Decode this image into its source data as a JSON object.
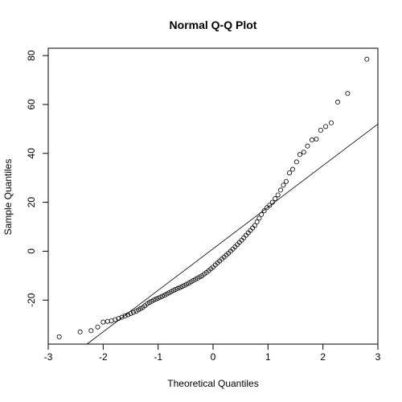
{
  "chart_data": {
    "type": "scatter",
    "title": "Normal Q-Q Plot",
    "xlabel": "Theoretical Quantiles",
    "ylabel": "Sample Quantiles",
    "xlim": [
      -3.0,
      3.0
    ],
    "ylim": [
      -38,
      83
    ],
    "x_ticks": [
      -3,
      -2,
      -1,
      0,
      1,
      2,
      3
    ],
    "y_ticks": [
      -20,
      0,
      20,
      40,
      60,
      80
    ],
    "grid": false,
    "legend": "none",
    "reference_line": {
      "intercept": 1.0,
      "slope": 17.0
    },
    "points": [
      {
        "x": -2.8,
        "y": -35.0
      },
      {
        "x": -2.42,
        "y": -33.0
      },
      {
        "x": -2.22,
        "y": -32.5
      },
      {
        "x": -2.1,
        "y": -31.0
      },
      {
        "x": -2.0,
        "y": -29.0
      },
      {
        "x": -1.92,
        "y": -28.7
      },
      {
        "x": -1.85,
        "y": -28.5
      },
      {
        "x": -1.78,
        "y": -28.0
      },
      {
        "x": -1.72,
        "y": -27.5
      },
      {
        "x": -1.66,
        "y": -27.0
      },
      {
        "x": -1.6,
        "y": -26.5
      },
      {
        "x": -1.55,
        "y": -26.0
      },
      {
        "x": -1.5,
        "y": -25.5
      },
      {
        "x": -1.45,
        "y": -25.0
      },
      {
        "x": -1.4,
        "y": -24.5
      },
      {
        "x": -1.36,
        "y": -24.0
      },
      {
        "x": -1.32,
        "y": -23.5
      },
      {
        "x": -1.28,
        "y": -23.0
      },
      {
        "x": -1.24,
        "y": -22.3
      },
      {
        "x": -1.2,
        "y": -21.5
      },
      {
        "x": -1.16,
        "y": -21.0
      },
      {
        "x": -1.12,
        "y": -20.5
      },
      {
        "x": -1.08,
        "y": -20.0
      },
      {
        "x": -1.04,
        "y": -19.6
      },
      {
        "x": -1.0,
        "y": -19.2
      },
      {
        "x": -0.96,
        "y": -18.8
      },
      {
        "x": -0.92,
        "y": -18.4
      },
      {
        "x": -0.88,
        "y": -18.0
      },
      {
        "x": -0.84,
        "y": -17.5
      },
      {
        "x": -0.8,
        "y": -17.0
      },
      {
        "x": -0.76,
        "y": -16.5
      },
      {
        "x": -0.72,
        "y": -16.0
      },
      {
        "x": -0.68,
        "y": -15.6
      },
      {
        "x": -0.64,
        "y": -15.2
      },
      {
        "x": -0.6,
        "y": -14.8
      },
      {
        "x": -0.56,
        "y": -14.4
      },
      {
        "x": -0.52,
        "y": -14.0
      },
      {
        "x": -0.48,
        "y": -13.5
      },
      {
        "x": -0.44,
        "y": -13.0
      },
      {
        "x": -0.4,
        "y": -12.5
      },
      {
        "x": -0.36,
        "y": -12.0
      },
      {
        "x": -0.32,
        "y": -11.5
      },
      {
        "x": -0.28,
        "y": -11.0
      },
      {
        "x": -0.24,
        "y": -10.5
      },
      {
        "x": -0.2,
        "y": -10.0
      },
      {
        "x": -0.16,
        "y": -9.3
      },
      {
        "x": -0.12,
        "y": -8.7
      },
      {
        "x": -0.08,
        "y": -8.0
      },
      {
        "x": -0.04,
        "y": -7.2
      },
      {
        "x": 0.0,
        "y": -6.5
      },
      {
        "x": 0.04,
        "y": -5.6
      },
      {
        "x": 0.08,
        "y": -4.8
      },
      {
        "x": 0.12,
        "y": -4.0
      },
      {
        "x": 0.16,
        "y": -3.2
      },
      {
        "x": 0.2,
        "y": -2.4
      },
      {
        "x": 0.24,
        "y": -1.6
      },
      {
        "x": 0.28,
        "y": -0.8
      },
      {
        "x": 0.32,
        "y": 0.0
      },
      {
        "x": 0.36,
        "y": 0.9
      },
      {
        "x": 0.4,
        "y": 1.8
      },
      {
        "x": 0.44,
        "y": 2.7
      },
      {
        "x": 0.48,
        "y": 3.6
      },
      {
        "x": 0.52,
        "y": 4.5
      },
      {
        "x": 0.56,
        "y": 5.5
      },
      {
        "x": 0.6,
        "y": 6.5
      },
      {
        "x": 0.64,
        "y": 7.5
      },
      {
        "x": 0.68,
        "y": 8.5
      },
      {
        "x": 0.72,
        "y": 9.5
      },
      {
        "x": 0.76,
        "y": 10.5
      },
      {
        "x": 0.8,
        "y": 12.0
      },
      {
        "x": 0.84,
        "y": 13.5
      },
      {
        "x": 0.88,
        "y": 15.0
      },
      {
        "x": 0.93,
        "y": 16.5
      },
      {
        "x": 0.98,
        "y": 17.8
      },
      {
        "x": 1.03,
        "y": 18.8
      },
      {
        "x": 1.08,
        "y": 20.0
      },
      {
        "x": 1.13,
        "y": 21.5
      },
      {
        "x": 1.18,
        "y": 23.0
      },
      {
        "x": 1.23,
        "y": 25.0
      },
      {
        "x": 1.28,
        "y": 27.0
      },
      {
        "x": 1.33,
        "y": 28.5
      },
      {
        "x": 1.39,
        "y": 32.0
      },
      {
        "x": 1.45,
        "y": 33.5
      },
      {
        "x": 1.52,
        "y": 36.5
      },
      {
        "x": 1.58,
        "y": 39.5
      },
      {
        "x": 1.65,
        "y": 40.5
      },
      {
        "x": 1.72,
        "y": 43.0
      },
      {
        "x": 1.8,
        "y": 45.5
      },
      {
        "x": 1.88,
        "y": 45.8
      },
      {
        "x": 1.96,
        "y": 49.5
      },
      {
        "x": 2.05,
        "y": 51.0
      },
      {
        "x": 2.15,
        "y": 52.5
      },
      {
        "x": 2.27,
        "y": 61.0
      },
      {
        "x": 2.45,
        "y": 64.5
      },
      {
        "x": 2.8,
        "y": 78.5
      }
    ]
  }
}
